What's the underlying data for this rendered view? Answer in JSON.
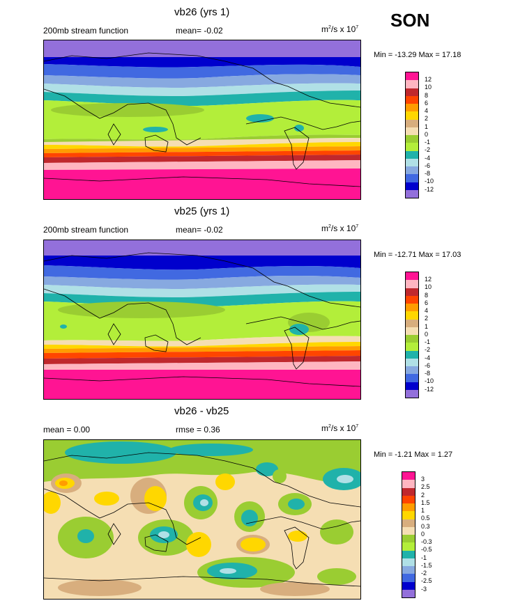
{
  "season": "SON",
  "units_base": "m",
  "units_rest": "/s x 10",
  "units_sq": "2",
  "units_exp": "7",
  "panels": [
    {
      "title": "vb26 (yrs 1)",
      "left_label": "200mb stream function",
      "stat": "mean=  -0.02",
      "minmax": "Min = -13.29 Max =  17.18",
      "levels": [
        "12",
        "10",
        "8",
        "6",
        "4",
        "2",
        "1",
        "0",
        "-1",
        "-2",
        "-4",
        "-6",
        "-8",
        "-10",
        "-12"
      ],
      "colors": [
        "#ff1493",
        "#ffb6c1",
        "#c0282d",
        "#ff4500",
        "#ff9c00",
        "#ffd700",
        "#d8ae7e",
        "#f5deb3",
        "#9acd32",
        "#b3ee3a",
        "#20b2aa",
        "#b0e0e6",
        "#87a9e0",
        "#4169e1",
        "#0000cd",
        "#9370db"
      ]
    },
    {
      "title": "vb25 (yrs 1)",
      "left_label": "200mb stream function",
      "stat": "mean=  -0.02",
      "minmax": "Min = -12.71 Max =  17.03",
      "levels": [
        "12",
        "10",
        "8",
        "6",
        "4",
        "2",
        "1",
        "0",
        "-1",
        "-2",
        "-4",
        "-6",
        "-8",
        "-10",
        "-12"
      ],
      "colors": [
        "#ff1493",
        "#ffb6c1",
        "#c0282d",
        "#ff4500",
        "#ff9c00",
        "#ffd700",
        "#d8ae7e",
        "#f5deb3",
        "#9acd32",
        "#b3ee3a",
        "#20b2aa",
        "#b0e0e6",
        "#87a9e0",
        "#4169e1",
        "#0000cd",
        "#9370db"
      ]
    },
    {
      "title": "vb26 - vb25",
      "left_label": "mean =   0.00",
      "stat": "rmse =   0.36",
      "minmax": "Min =  -1.21 Max =   1.27",
      "levels": [
        "3",
        "2.5",
        "2",
        "1.5",
        "1",
        "0.5",
        "0.3",
        "0",
        "-0.3",
        "-0.5",
        "-1",
        "-1.5",
        "-2",
        "-2.5",
        "-3"
      ],
      "colors": [
        "#ff1493",
        "#ffb6c1",
        "#c0282d",
        "#ff4500",
        "#ff9c00",
        "#ffd700",
        "#d8ae7e",
        "#f5deb3",
        "#9acd32",
        "#b3ee3a",
        "#20b2aa",
        "#b0e0e6",
        "#87a9e0",
        "#4169e1",
        "#0000cd",
        "#9370db"
      ]
    }
  ]
}
